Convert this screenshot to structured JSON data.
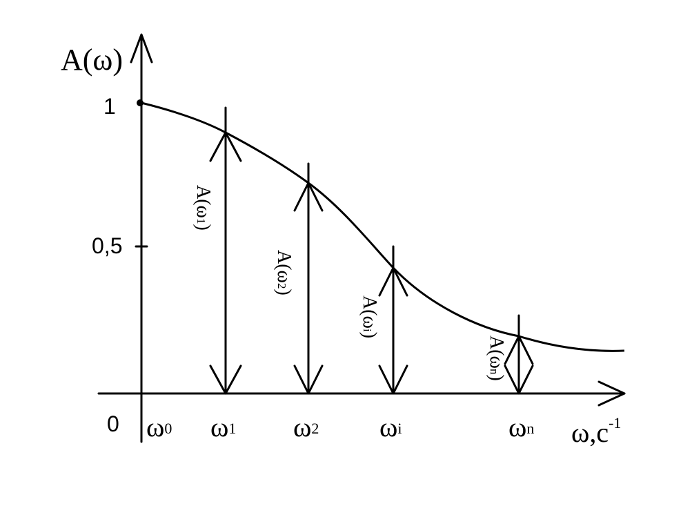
{
  "diagram": {
    "y_axis_label": "A(ω)",
    "x_axis_label_base": "ω,c",
    "x_axis_label_exp": "-1",
    "origin_label": "0",
    "y_ticks": [
      {
        "label": "1",
        "value": 1
      },
      {
        "label": "0,5",
        "value": 0.5
      }
    ],
    "x_points": [
      {
        "sym": "ω",
        "sub": "0"
      },
      {
        "sym": "ω",
        "sub": "1"
      },
      {
        "sym": "ω",
        "sub": "2"
      },
      {
        "sym": "ω",
        "sub": "i"
      },
      {
        "sym": "ω",
        "sub": "n"
      }
    ],
    "ordinate_labels": [
      {
        "base": "A(ω",
        "sub": "1",
        "close": ")"
      },
      {
        "base": "A(ω",
        "sub": "2",
        "close": ")"
      },
      {
        "base": "A(ω",
        "sub": "i",
        "close": ")"
      },
      {
        "base": "A(ω",
        "sub": "n",
        "close": ")"
      }
    ],
    "colors": {
      "ink": "#000000",
      "background": "#ffffff"
    }
  }
}
